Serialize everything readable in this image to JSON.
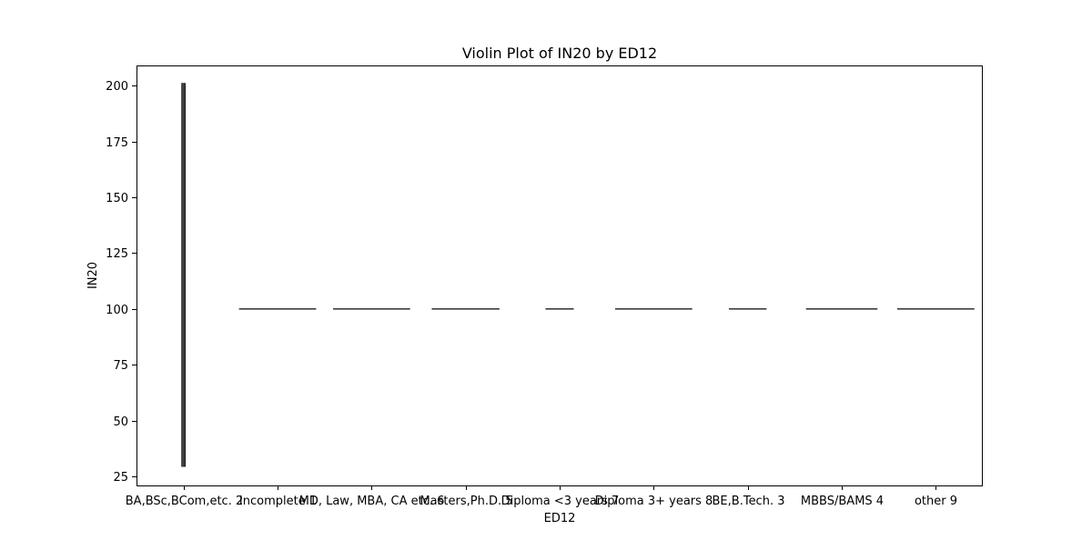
{
  "colors": {
    "background": "#ffffff",
    "axis": "#000000",
    "violin": "#3f3f3f"
  },
  "chart_data": {
    "type": "violin",
    "title": "Violin Plot of IN20 by ED12",
    "xlabel": "ED12",
    "ylabel": "IN20",
    "ylim": [
      21,
      209
    ],
    "yticks": [
      25,
      50,
      75,
      100,
      125,
      150,
      175,
      200
    ],
    "grid": false,
    "categories": [
      "BA,BSc,BCom,etc. 2",
      "Incomplete 1",
      "MD, Law, MBA, CA etc. 6",
      "Masters,Ph.D. 5",
      "Diploma <3 years 7",
      "Diploma 3+ years 8",
      "BE,B.Tech. 3",
      "MBBS/BAMS 4",
      "other 9"
    ],
    "violins": [
      {
        "category": "BA,BSc,BCom,etc. 2",
        "min": 29.5,
        "max": 201,
        "center": 100,
        "width": 0.04
      },
      {
        "category": "Incomplete 1",
        "min": 100,
        "max": 100,
        "center": 100,
        "width": 0.82
      },
      {
        "category": "MD, Law, MBA, CA etc. 6",
        "min": 100,
        "max": 100,
        "center": 100,
        "width": 0.82
      },
      {
        "category": "Masters,Ph.D. 5",
        "min": 100,
        "max": 100,
        "center": 100,
        "width": 0.72
      },
      {
        "category": "Diploma <3 years 7",
        "min": 100,
        "max": 100,
        "center": 100,
        "width": 0.3
      },
      {
        "category": "Diploma 3+ years 8",
        "min": 100,
        "max": 100,
        "center": 100,
        "width": 0.82
      },
      {
        "category": "BE,B.Tech. 3",
        "min": 100,
        "max": 100,
        "center": 100,
        "width": 0.4
      },
      {
        "category": "MBBS/BAMS 4",
        "min": 100,
        "max": 100,
        "center": 100,
        "width": 0.76
      },
      {
        "category": "other 9",
        "min": 100,
        "max": 100,
        "center": 100,
        "width": 0.82
      }
    ]
  }
}
